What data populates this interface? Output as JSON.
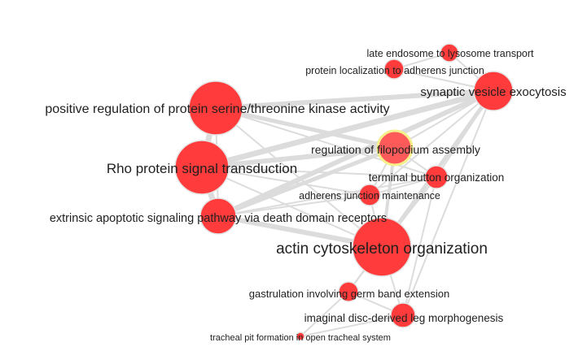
{
  "graph": {
    "node_color": "#ff3b3b",
    "edge_color": "#dcdcdc",
    "highlight_color": "#f6f08a",
    "nodes": [
      {
        "id": "late-endosome",
        "label": "late endosome to lysosome transport"
      },
      {
        "id": "protein-localization",
        "label": "protein localization to adherens junction"
      },
      {
        "id": "synaptic-vesicle",
        "label": "synaptic vesicle exocytosis"
      },
      {
        "id": "positive-regulation",
        "label": "positive regulation of protein serine/threonine kinase activity"
      },
      {
        "id": "regulation-filopodium",
        "label": "regulation of filopodium assembly",
        "selected": true
      },
      {
        "id": "rho-protein",
        "label": "Rho protein signal transduction"
      },
      {
        "id": "terminal-button",
        "label": "terminal button organization"
      },
      {
        "id": "adherens-maintenance",
        "label": "adherens junction maintenance"
      },
      {
        "id": "extrinsic-apoptotic",
        "label": "extrinsic apoptotic signaling pathway via death domain receptors"
      },
      {
        "id": "actin-cytoskeleton",
        "label": "actin cytoskeleton organization"
      },
      {
        "id": "gastrulation",
        "label": "gastrulation involving germ band extension"
      },
      {
        "id": "imaginal-disc",
        "label": "imaginal disc-derived leg morphogenesis"
      },
      {
        "id": "tracheal-pit",
        "label": "tracheal pit formation in open tracheal system"
      }
    ],
    "edges": [
      [
        "positive-regulation",
        "synaptic-vesicle"
      ],
      [
        "positive-regulation",
        "regulation-filopodium"
      ],
      [
        "positive-regulation",
        "rho-protein"
      ],
      [
        "positive-regulation",
        "extrinsic-apoptotic"
      ],
      [
        "positive-regulation",
        "actin-cytoskeleton"
      ],
      [
        "positive-regulation",
        "terminal-button"
      ],
      [
        "rho-protein",
        "synaptic-vesicle"
      ],
      [
        "rho-protein",
        "regulation-filopodium"
      ],
      [
        "rho-protein",
        "extrinsic-apoptotic"
      ],
      [
        "rho-protein",
        "actin-cytoskeleton"
      ],
      [
        "rho-protein",
        "terminal-button"
      ],
      [
        "rho-protein",
        "adherens-maintenance"
      ],
      [
        "extrinsic-apoptotic",
        "synaptic-vesicle"
      ],
      [
        "extrinsic-apoptotic",
        "regulation-filopodium"
      ],
      [
        "extrinsic-apoptotic",
        "actin-cytoskeleton"
      ],
      [
        "extrinsic-apoptotic",
        "terminal-button"
      ],
      [
        "extrinsic-apoptotic",
        "adherens-maintenance"
      ],
      [
        "actin-cytoskeleton",
        "synaptic-vesicle"
      ],
      [
        "actin-cytoskeleton",
        "regulation-filopodium"
      ],
      [
        "actin-cytoskeleton",
        "terminal-button"
      ],
      [
        "actin-cytoskeleton",
        "adherens-maintenance"
      ],
      [
        "actin-cytoskeleton",
        "gastrulation"
      ],
      [
        "actin-cytoskeleton",
        "imaginal-disc"
      ],
      [
        "synaptic-vesicle",
        "late-endosome"
      ],
      [
        "synaptic-vesicle",
        "protein-localization"
      ],
      [
        "synaptic-vesicle",
        "regulation-filopodium"
      ],
      [
        "synaptic-vesicle",
        "terminal-button"
      ],
      [
        "synaptic-vesicle",
        "adherens-maintenance"
      ],
      [
        "synaptic-vesicle",
        "imaginal-disc"
      ],
      [
        "synaptic-vesicle",
        "gastrulation"
      ],
      [
        "regulation-filopodium",
        "terminal-button"
      ],
      [
        "regulation-filopodium",
        "adherens-maintenance"
      ],
      [
        "terminal-button",
        "adherens-maintenance"
      ],
      [
        "gastrulation",
        "imaginal-disc"
      ],
      [
        "gastrulation",
        "tracheal-pit"
      ],
      [
        "imaginal-disc",
        "tracheal-pit"
      ],
      [
        "protein-localization",
        "late-endosome"
      ],
      [
        "terminal-button",
        "imaginal-disc"
      ]
    ]
  }
}
